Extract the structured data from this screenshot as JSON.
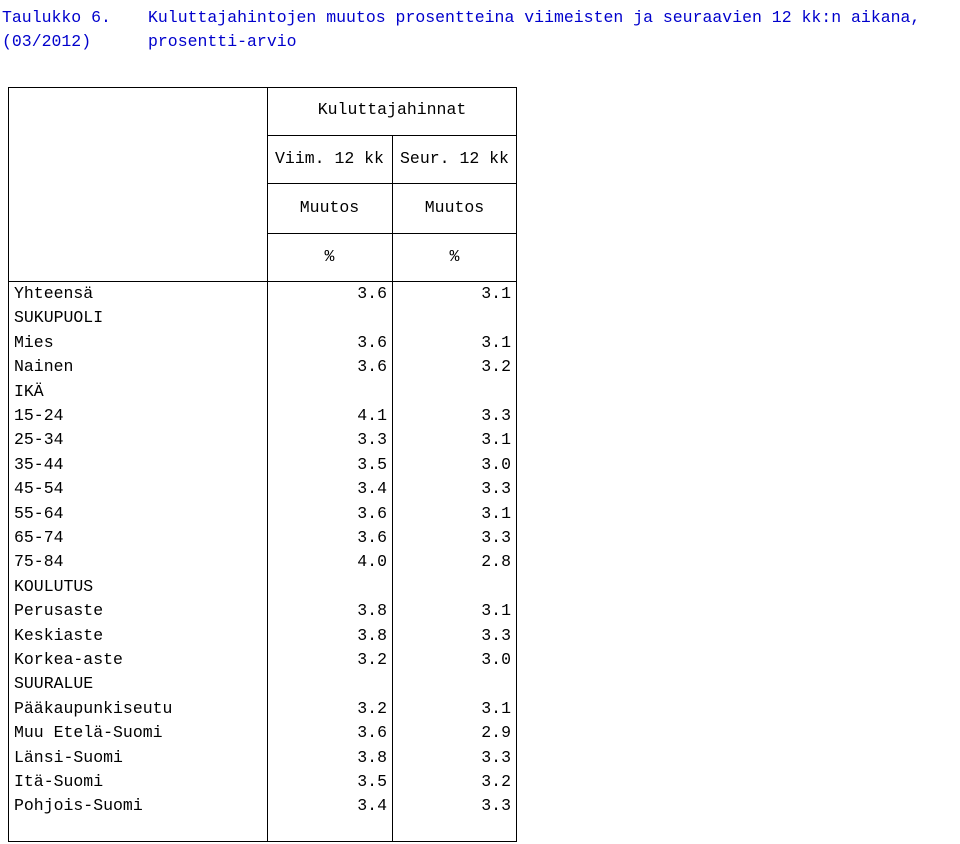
{
  "title": {
    "label": "Taulukko 6.",
    "date": "(03/2012)",
    "line1": "Kuluttajahintojen muutos prosentteina viimeisten ja seuraavien 12 kk:n aikana,",
    "line2": "prosentti-arvio"
  },
  "header": {
    "group": "Kuluttajahinnat",
    "col1_period": "Viim. 12 kk",
    "col2_period": "Seur. 12 kk",
    "col1_measure": "Muutos",
    "col2_measure": "Muutos",
    "col1_unit": "%",
    "col2_unit": "%"
  },
  "rows": [
    {
      "label": "Yhteensä",
      "v1": "3.6",
      "v2": "3.1"
    },
    {
      "label": "SUKUPUOLI",
      "v1": "",
      "v2": ""
    },
    {
      "label": "Mies",
      "v1": "3.6",
      "v2": "3.1"
    },
    {
      "label": "Nainen",
      "v1": "3.6",
      "v2": "3.2"
    },
    {
      "label": "IKÄ",
      "v1": "",
      "v2": ""
    },
    {
      "label": "15-24",
      "v1": "4.1",
      "v2": "3.3"
    },
    {
      "label": "25-34",
      "v1": "3.3",
      "v2": "3.1"
    },
    {
      "label": "35-44",
      "v1": "3.5",
      "v2": "3.0"
    },
    {
      "label": "45-54",
      "v1": "3.4",
      "v2": "3.3"
    },
    {
      "label": "55-64",
      "v1": "3.6",
      "v2": "3.1"
    },
    {
      "label": "65-74",
      "v1": "3.6",
      "v2": "3.3"
    },
    {
      "label": "75-84",
      "v1": "4.0",
      "v2": "2.8"
    },
    {
      "label": "KOULUTUS",
      "v1": "",
      "v2": ""
    },
    {
      "label": "Perusaste",
      "v1": "3.8",
      "v2": "3.1"
    },
    {
      "label": "Keskiaste",
      "v1": "3.8",
      "v2": "3.3"
    },
    {
      "label": "Korkea-aste",
      "v1": "3.2",
      "v2": "3.0"
    },
    {
      "label": "SUURALUE",
      "v1": "",
      "v2": ""
    },
    {
      "label": "Pääkaupunkiseutu",
      "v1": "3.2",
      "v2": "3.1"
    },
    {
      "label": "Muu Etelä-Suomi",
      "v1": "3.6",
      "v2": "2.9"
    },
    {
      "label": "Länsi-Suomi",
      "v1": "3.8",
      "v2": "3.3"
    },
    {
      "label": "Itä-Suomi",
      "v1": "3.5",
      "v2": "3.2"
    },
    {
      "label": "Pohjois-Suomi",
      "v1": "3.4",
      "v2": "3.3"
    }
  ]
}
